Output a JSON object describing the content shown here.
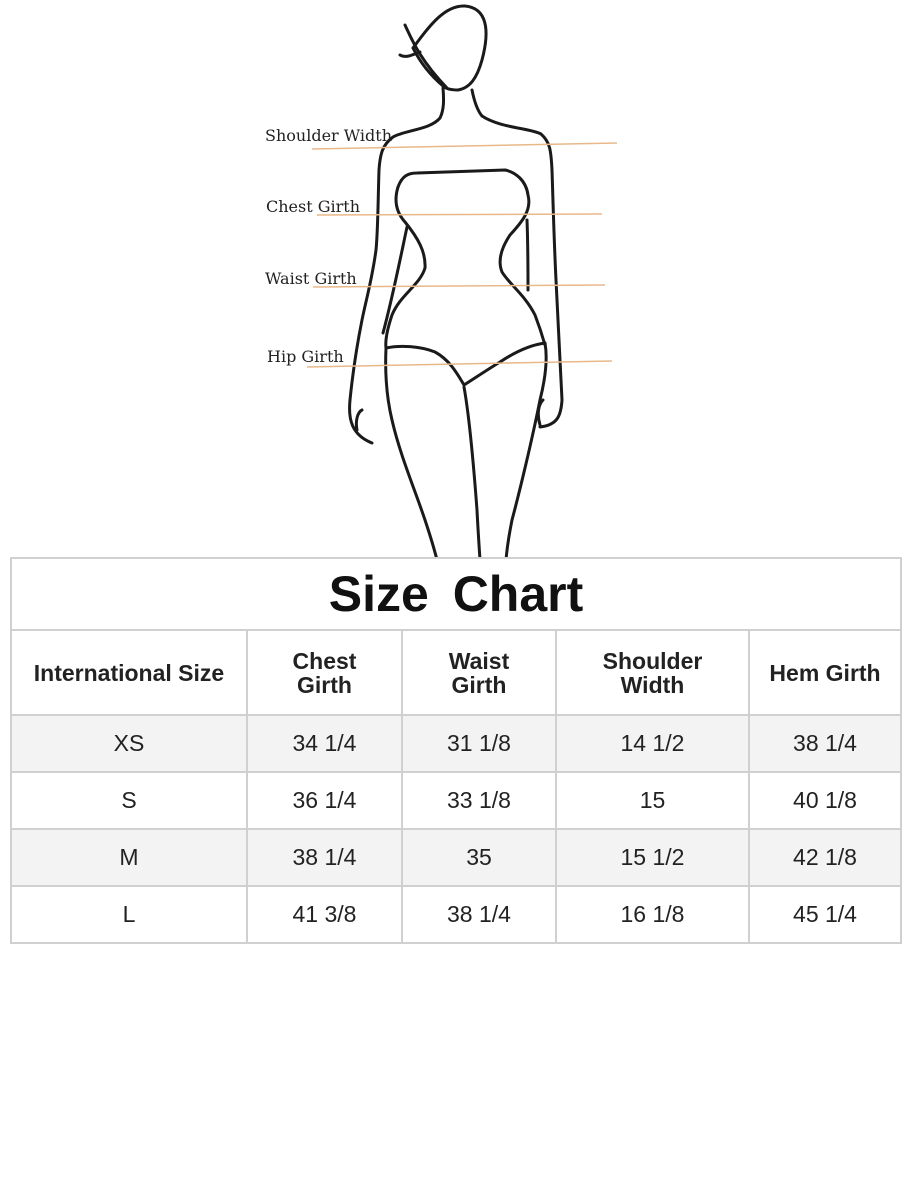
{
  "figure": {
    "labels": [
      "Shoulder Width",
      "Chest Girth",
      "Waist Girth",
      "Hip Girth"
    ],
    "line_color": "#e8b88a"
  },
  "table": {
    "title": "Size  Chart",
    "headers": [
      "International Size",
      "Chest Girth",
      "Waist Girth",
      "Shoulder Width",
      "Hem Girth"
    ],
    "rows": [
      [
        "XS",
        "34 1/4",
        "31 1/8",
        "14 1/2",
        "38 1/4"
      ],
      [
        "S",
        "36 1/4",
        "33 1/8",
        "15",
        "40 1/8"
      ],
      [
        "M",
        "38 1/4",
        "35",
        "15 1/2",
        "42 1/8"
      ],
      [
        "L",
        "41 3/8",
        "38 1/4",
        "16 1/8",
        "45 1/4"
      ]
    ],
    "stripe_color": "#f3f3f3",
    "border_color": "#d0d0d0"
  }
}
